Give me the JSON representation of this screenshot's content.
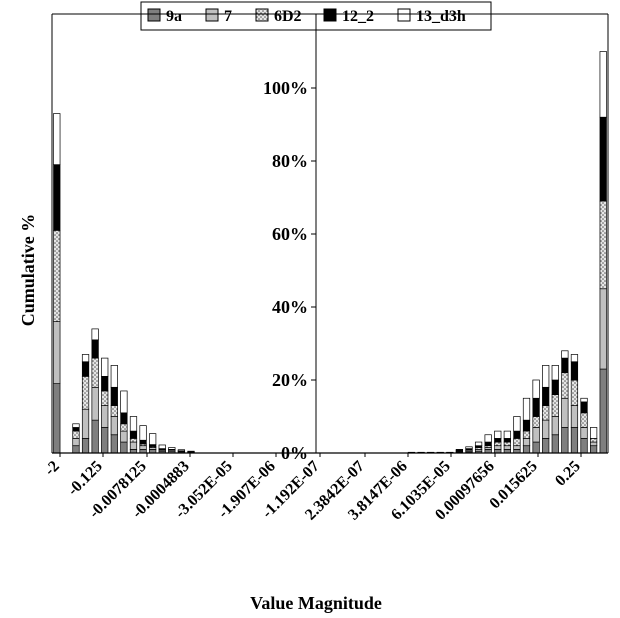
{
  "chart_data": {
    "type": "bar",
    "stacked": true,
    "title": "",
    "xlabel": "Value Magnitude",
    "ylabel": "Cumulative %",
    "ylim": [
      0,
      1.1
    ],
    "y_ticks": [
      "0%",
      "20%",
      "40%",
      "60%",
      "80%",
      "100%"
    ],
    "grid": false,
    "legend_position": "top",
    "legend": [
      "9a",
      "7",
      "6D2",
      "12_2",
      "13_d3h"
    ],
    "x_tick_labels": [
      "-2",
      "-0.125",
      "-0.0078125",
      "-0.0004883",
      "-3.052E-05",
      "-1.907E-06",
      "-1.192E-07",
      "2.3842E-07",
      "3.8147E-06",
      "6.1035E-05",
      "0.00097656",
      "0.015625",
      "0.25"
    ],
    "series": [
      {
        "name": "9a",
        "values": [
          0.19,
          0,
          0.02,
          0.04,
          0.09,
          0.07,
          0.05,
          0.03,
          0.01,
          0.01,
          0.01,
          0.005,
          0.005,
          0.003,
          0.002,
          0,
          0,
          0,
          0,
          0,
          0,
          0,
          0,
          0,
          0,
          0,
          0,
          0,
          0,
          0,
          0,
          0,
          0,
          0,
          0,
          0,
          0,
          0.001,
          0.001,
          0.001,
          0.001,
          0.001,
          0.002,
          0.003,
          0.005,
          0.01,
          0.01,
          0.01,
          0.01,
          0.02,
          0.03,
          0.04,
          0.05,
          0.07,
          0.07,
          0.04,
          0.02,
          0.23
        ]
      },
      {
        "name": "7",
        "values": [
          0.17,
          0,
          0.02,
          0.08,
          0.09,
          0.06,
          0.05,
          0.03,
          0.02,
          0.01,
          0.005,
          0.003,
          0.003,
          0.002,
          0.001,
          0,
          0,
          0,
          0,
          0,
          0,
          0,
          0,
          0,
          0,
          0,
          0,
          0,
          0,
          0,
          0,
          0,
          0,
          0,
          0,
          0,
          0,
          0.001,
          0.001,
          0.001,
          0.001,
          0.001,
          0.002,
          0.003,
          0.005,
          0.005,
          0.01,
          0.01,
          0.01,
          0.02,
          0.04,
          0.05,
          0.05,
          0.08,
          0.06,
          0.03,
          0.01,
          0.22
        ]
      },
      {
        "name": "6D2",
        "values": [
          0.25,
          0,
          0.02,
          0.09,
          0.08,
          0.04,
          0.03,
          0.02,
          0.01,
          0.005,
          0.003,
          0.002,
          0.001,
          0.001,
          0,
          0,
          0,
          0,
          0,
          0,
          0,
          0,
          0,
          0,
          0,
          0,
          0,
          0,
          0,
          0,
          0,
          0,
          0,
          0,
          0,
          0,
          0,
          0,
          0,
          0,
          0,
          0,
          0.002,
          0.003,
          0.005,
          0.005,
          0.01,
          0.01,
          0.02,
          0.02,
          0.03,
          0.04,
          0.06,
          0.07,
          0.07,
          0.04,
          0.01,
          0.24
        ]
      },
      {
        "name": "12_2",
        "values": [
          0.18,
          0,
          0.01,
          0.04,
          0.05,
          0.04,
          0.05,
          0.03,
          0.02,
          0.01,
          0.005,
          0.002,
          0.001,
          0,
          0,
          0,
          0,
          0,
          0,
          0,
          0,
          0,
          0,
          0,
          0,
          0,
          0,
          0,
          0,
          0,
          0,
          0,
          0,
          0,
          0,
          0,
          0,
          0,
          0,
          0,
          0,
          0,
          0.002,
          0.003,
          0.005,
          0.01,
          0.01,
          0.01,
          0.02,
          0.03,
          0.05,
          0.05,
          0.04,
          0.04,
          0.05,
          0.03,
          0,
          0.23
        ]
      },
      {
        "name": "13_d3h",
        "values": [
          0.14,
          0,
          0.01,
          0.02,
          0.03,
          0.05,
          0.06,
          0.06,
          0.04,
          0.04,
          0.03,
          0.01,
          0.005,
          0.003,
          0.002,
          0,
          0,
          0,
          0,
          0,
          0,
          0,
          0,
          0,
          0,
          0,
          0,
          0,
          0,
          0,
          0,
          0,
          0,
          0,
          0,
          0,
          0,
          0,
          0,
          0,
          0,
          0,
          0.002,
          0.005,
          0.01,
          0.02,
          0.02,
          0.02,
          0.04,
          0.06,
          0.05,
          0.06,
          0.04,
          0.02,
          0.02,
          0.01,
          0.03,
          0.18
        ]
      }
    ],
    "colors": [
      "#7f7f7f",
      "#c0c0c0",
      "#dcdcdc",
      "#000000",
      "#ffffff"
    ],
    "patterns": [
      "solid",
      "solid",
      "dotted",
      "solid",
      "solid"
    ]
  }
}
